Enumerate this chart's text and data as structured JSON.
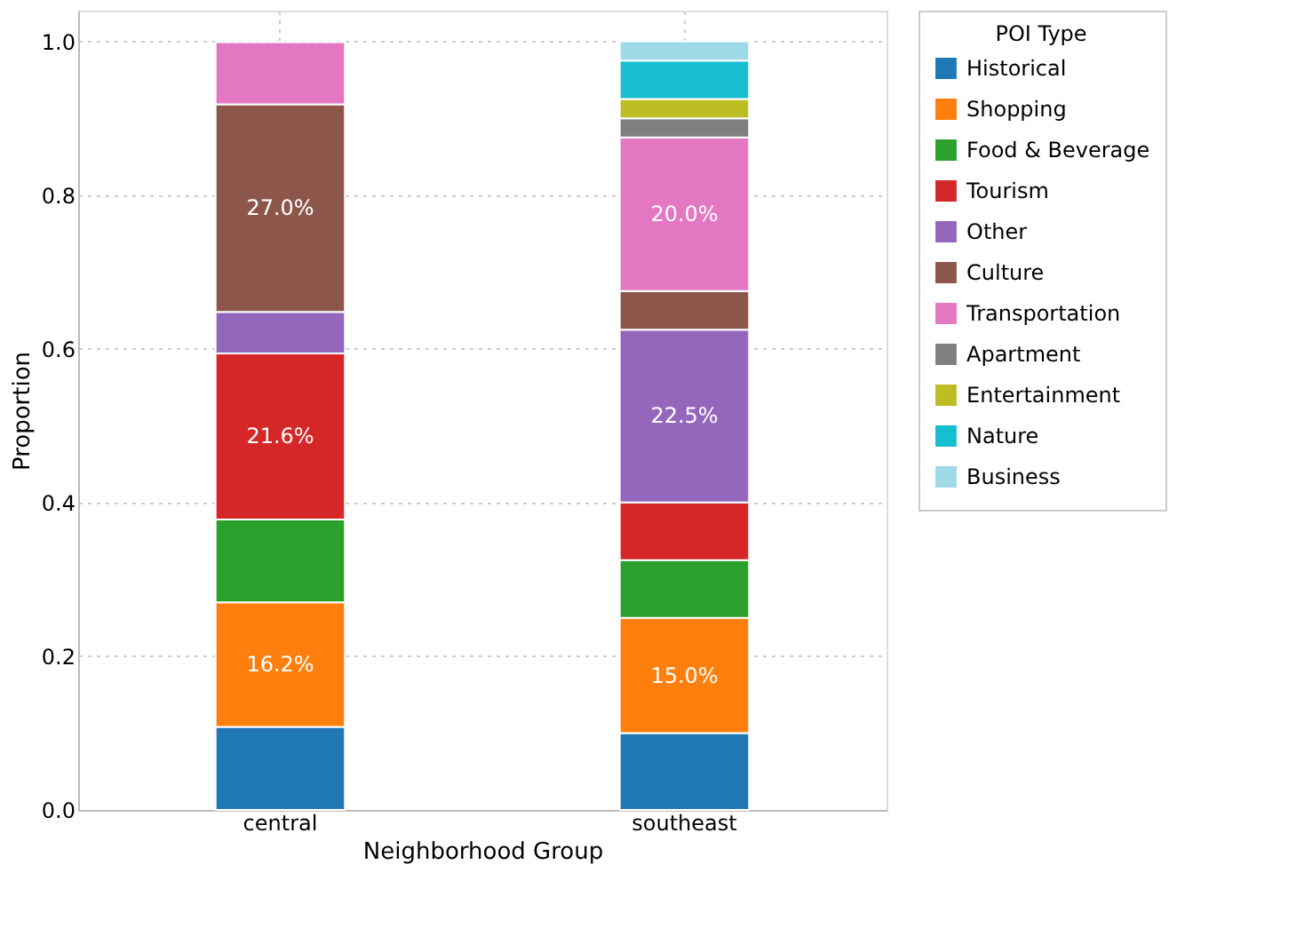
{
  "chart_data": {
    "type": "bar",
    "stacked": true,
    "xlabel": "Neighborhood Group",
    "ylabel": "Proportion",
    "legend_title": "POI Type",
    "legend": "top right",
    "grid": true,
    "categories": [
      "central",
      "southeast"
    ],
    "ylim": [
      0,
      1.04
    ],
    "yticks": [
      {
        "value": 0,
        "label": "0.0"
      },
      {
        "value": 0.2,
        "label": "0.2"
      },
      {
        "value": 0.4,
        "label": "0.4"
      },
      {
        "value": 0.6,
        "label": "0.6"
      },
      {
        "value": 0.8,
        "label": "0.8"
      },
      {
        "value": 1,
        "label": "1.0"
      }
    ],
    "series": [
      {
        "name": "Historical",
        "color": "#1f77b4",
        "values": [
          0.108,
          0.1
        ]
      },
      {
        "name": "Shopping",
        "color": "#ff7f0e",
        "values": [
          0.162,
          0.15
        ],
        "value_labels": [
          "16.2%",
          "15.0%"
        ]
      },
      {
        "name": "Food & Beverage",
        "color": "#2ca02c",
        "values": [
          0.108,
          0.075
        ]
      },
      {
        "name": "Tourism",
        "color": "#d62728",
        "values": [
          0.216,
          0.075
        ],
        "value_labels": [
          "21.6%",
          null
        ]
      },
      {
        "name": "Other",
        "color": "#9467bd",
        "values": [
          0.054,
          0.225
        ],
        "value_labels": [
          null,
          "22.5%"
        ]
      },
      {
        "name": "Culture",
        "color": "#8c564b",
        "values": [
          0.27,
          0.05
        ],
        "value_labels": [
          "27.0%",
          null
        ]
      },
      {
        "name": "Transportation",
        "color": "#e377c2",
        "values": [
          0.081,
          0.2
        ],
        "value_labels": [
          null,
          "20.0%"
        ]
      },
      {
        "name": "Apartment",
        "color": "#7f7f7f",
        "values": [
          null,
          0.025
        ]
      },
      {
        "name": "Entertainment",
        "color": "#bcbd22",
        "values": [
          null,
          0.025
        ]
      },
      {
        "name": "Nature",
        "color": "#17becf",
        "values": [
          null,
          0.05
        ]
      },
      {
        "name": "Business",
        "color": "#9edae5",
        "values": [
          null,
          0.025
        ]
      }
    ]
  }
}
